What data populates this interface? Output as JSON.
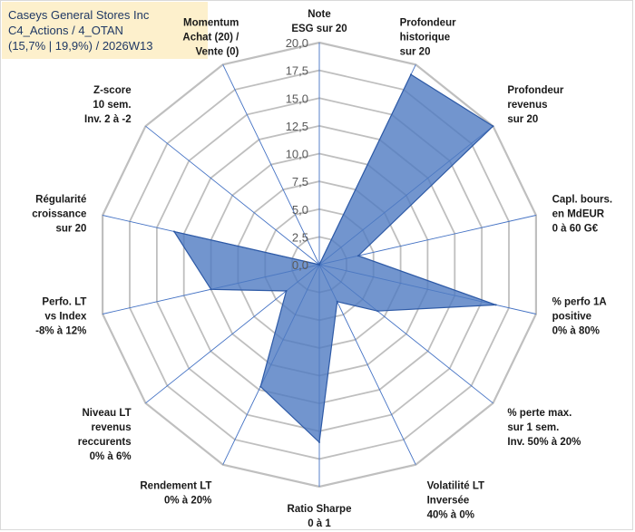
{
  "header": {
    "line1": "Caseys General Stores Inc",
    "line2": "C4_Actions / 4_OTAN",
    "line3": "(15,7% | 19,9%) / 2026W13"
  },
  "chart_data": {
    "type": "radar",
    "title": "Caseys General Stores Inc",
    "rmin": 0,
    "rmax": 20,
    "tick_step": 2.5,
    "tick_labels": [
      "0,0",
      "2,5",
      "5,0",
      "7,5",
      "10,0",
      "12,5",
      "15,0",
      "17,5",
      "20,0"
    ],
    "axes": [
      {
        "label": [
          "Note",
          "ESG sur 20"
        ],
        "value": 0
      },
      {
        "label": [
          "Profondeur",
          "historique",
          "sur 20"
        ],
        "value": 19
      },
      {
        "label": [
          "Profondeur",
          "revenus",
          "sur 20"
        ],
        "value": 20
      },
      {
        "label": [
          "Capl. bours.",
          "en MdEUR",
          "0 à 60 G€"
        ],
        "value": 3.6
      },
      {
        "label": [
          "% perfo 1A",
          "positive",
          "0% à 80%"
        ],
        "value": 16.3
      },
      {
        "label": [
          "% perte max.",
          "sur 1 sem.",
          "Inv. 50% à 20%"
        ],
        "value": 6.7
      },
      {
        "label": [
          "Volatilité LT",
          "Inversée",
          "40% à 0%"
        ],
        "value": 3.7
      },
      {
        "label": [
          "Ratio Sharpe",
          "0 à 1"
        ],
        "value": 16
      },
      {
        "label": [
          "Rendement LT",
          "0% à 20%"
        ],
        "value": 12.2
      },
      {
        "label": [
          "Niveau LT",
          "revenus",
          "reccurents",
          "0% à 6%"
        ],
        "value": 3.8
      },
      {
        "label": [
          "Perfo. LT",
          "vs Index",
          "-8% à 12%"
        ],
        "value": 10
      },
      {
        "label": [
          "Régularité",
          "croissance",
          "sur 20"
        ],
        "value": 13.4
      },
      {
        "label": [
          "Z-score",
          "10 sem.",
          "Inv. 2 à -2"
        ],
        "value": 0
      },
      {
        "label": [
          "Momentum",
          "Achat (20) /",
          "Vente (0)"
        ],
        "value": 0
      }
    ],
    "colors": {
      "fill": "#4f7bc2",
      "line": "#2e5aa6",
      "spoke": "#4472c4",
      "grid": "#bfbfbf"
    }
  }
}
